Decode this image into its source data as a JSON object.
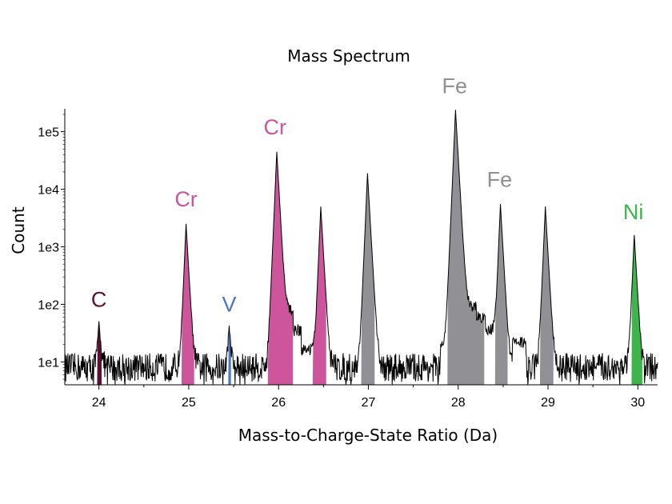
{
  "chart_data": {
    "type": "area",
    "title": "Mass Spectrum",
    "xlabel": "Mass-to-Charge-State Ratio (Da)",
    "ylabel": "Count",
    "xlim": [
      23.62,
      30.22
    ],
    "ylim": [
      4,
      250000
    ],
    "yscale": "log",
    "grid": false,
    "x_ticks": [
      24,
      25,
      26,
      27,
      28,
      29,
      30
    ],
    "x_tick_labels": [
      "24",
      "25",
      "26",
      "27",
      "28",
      "29",
      "30"
    ],
    "y_ticks": [
      10,
      100,
      1000,
      10000,
      100000
    ],
    "y_tick_labels": [
      "1e1",
      "1e2",
      "1e3",
      "1e4",
      "1e5"
    ],
    "background_level": 8,
    "peaks": [
      {
        "x": 24.0,
        "y": 48
      },
      {
        "x": 24.97,
        "y": 2500
      },
      {
        "x": 25.45,
        "y": 36
      },
      {
        "x": 25.98,
        "y": 45000
      },
      {
        "x": 26.47,
        "y": 5000
      },
      {
        "x": 26.99,
        "y": 19000
      },
      {
        "x": 27.97,
        "y": 240000
      },
      {
        "x": 28.47,
        "y": 5500
      },
      {
        "x": 28.97,
        "y": 5000
      },
      {
        "x": 29.96,
        "y": 1600
      }
    ],
    "shoulders": [
      {
        "x_from": 26.05,
        "x_to": 26.16,
        "y": 75
      },
      {
        "x_from": 26.16,
        "x_to": 26.25,
        "y": 35
      },
      {
        "x_from": 26.25,
        "x_to": 26.4,
        "y": 16
      },
      {
        "x_from": 27.8,
        "x_to": 27.9,
        "y": 20
      },
      {
        "x_from": 28.05,
        "x_to": 28.2,
        "y": 90
      },
      {
        "x_from": 28.2,
        "x_to": 28.3,
        "y": 60
      },
      {
        "x_from": 28.3,
        "x_to": 28.42,
        "y": 35
      },
      {
        "x_from": 28.6,
        "x_to": 28.75,
        "y": 22
      }
    ],
    "ranges": [
      {
        "element": "C",
        "x_from": 23.98,
        "x_to": 24.03,
        "color": "#5c1034"
      },
      {
        "element": "Cr",
        "x_from": 24.92,
        "x_to": 25.06,
        "color": "#cc559b"
      },
      {
        "element": "V",
        "x_from": 25.44,
        "x_to": 25.47,
        "color": "#4a78c2"
      },
      {
        "element": "Cr",
        "x_from": 25.88,
        "x_to": 26.16,
        "color": "#cc559b"
      },
      {
        "element": "Cr",
        "x_from": 26.38,
        "x_to": 26.53,
        "color": "#cc559b"
      },
      {
        "element": "Fe",
        "x_from": 26.92,
        "x_to": 27.07,
        "color": "#909095"
      },
      {
        "element": "Fe",
        "x_from": 27.88,
        "x_to": 28.29,
        "color": "#909095"
      },
      {
        "element": "Fe",
        "x_from": 28.41,
        "x_to": 28.55,
        "color": "#909095"
      },
      {
        "element": "Fe",
        "x_from": 28.91,
        "x_to": 29.06,
        "color": "#909095"
      },
      {
        "element": "Ni",
        "x_from": 29.93,
        "x_to": 30.05,
        "color": "#3db54a"
      }
    ],
    "annotations": [
      {
        "text": "C",
        "x": 24.0,
        "y": 90,
        "color": "#5c1034"
      },
      {
        "text": "Cr",
        "x": 24.97,
        "y": 5000,
        "color": "#cc559b"
      },
      {
        "text": "V",
        "x": 25.45,
        "y": 75,
        "color": "#4a78c2"
      },
      {
        "text": "Cr",
        "x": 25.96,
        "y": 90000,
        "color": "#cc559b"
      },
      {
        "text": "Fe",
        "x": 27.96,
        "y": 470000,
        "color": "#909095"
      },
      {
        "text": "Fe",
        "x": 28.46,
        "y": 11000,
        "color": "#909095"
      },
      {
        "text": "Ni",
        "x": 29.95,
        "y": 3000,
        "color": "#3db54a"
      }
    ]
  }
}
